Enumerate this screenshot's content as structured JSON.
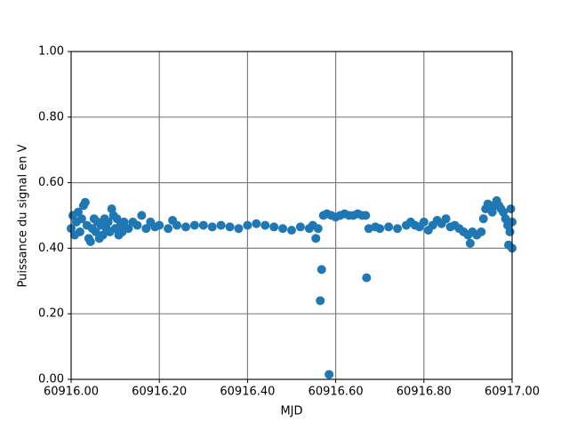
{
  "chart_data": {
    "type": "scatter",
    "x_label": "MJD",
    "y_label": "Puissance du signal en V",
    "xlim": [
      60916.0,
      60917.0
    ],
    "xticks": [
      {
        "value": 60916.0,
        "label": "60916.00"
      },
      {
        "value": 60916.2,
        "label": "60916.20"
      },
      {
        "value": 60916.4,
        "label": "60916.40"
      },
      {
        "value": 60916.6,
        "label": "60916.60"
      },
      {
        "value": 60916.8,
        "label": "60916.80"
      },
      {
        "value": 60917.0,
        "label": "60917.00"
      }
    ],
    "ylim": [
      0,
      1
    ],
    "yticks": [
      {
        "value": 0,
        "label": "0.00"
      },
      {
        "value": 0.2,
        "label": "0.20"
      },
      {
        "value": 0.4,
        "label": "0.40"
      },
      {
        "value": 0.6,
        "label": "0.60"
      },
      {
        "value": 0.8,
        "label": "0.80"
      },
      {
        "value": 1,
        "label": "1.00"
      }
    ],
    "grid": true,
    "color": "#1f77b4",
    "x": [
      60916.0,
      60916.004,
      60916.008,
      60916.012,
      60916.016,
      60916.02,
      60916.024,
      60916.028,
      60916.032,
      60916.036,
      60916.04,
      60916.044,
      60916.048,
      60916.052,
      60916.056,
      60916.06,
      60916.064,
      60916.068,
      60916.072,
      60916.076,
      60916.08,
      60916.084,
      60916.088,
      60916.092,
      60916.096,
      60916.1,
      60916.104,
      60916.108,
      60916.112,
      60916.116,
      60916.12,
      60916.13,
      60916.14,
      60916.15,
      60916.16,
      60916.17,
      60916.18,
      60916.19,
      60916.2,
      60916.22,
      60916.23,
      60916.24,
      60916.26,
      60916.28,
      60916.3,
      60916.32,
      60916.34,
      60916.36,
      60916.38,
      60916.4,
      60916.42,
      60916.44,
      60916.46,
      60916.48,
      60916.5,
      60916.52,
      60916.54,
      60916.548,
      60916.555,
      60916.56,
      60916.565,
      60916.568,
      60916.572,
      60916.58,
      60916.585,
      60916.59,
      60916.6,
      60916.61,
      60916.62,
      60916.63,
      60916.64,
      60916.65,
      60916.66,
      60916.668,
      60916.67,
      60916.675,
      60916.69,
      60916.7,
      60916.72,
      60916.74,
      60916.76,
      60916.77,
      60916.78,
      60916.79,
      60916.8,
      60916.81,
      60916.82,
      60916.83,
      60916.84,
      60916.85,
      60916.86,
      60916.87,
      60916.88,
      60916.89,
      60916.9,
      60916.905,
      60916.91,
      60916.92,
      60916.93,
      60916.935,
      60916.94,
      60916.945,
      60916.95,
      60916.955,
      60916.96,
      60916.965,
      60916.97,
      60916.975,
      60916.98,
      60916.985,
      60916.99,
      60916.992,
      60916.995,
      60916.997,
      60917.0,
      60917.0
    ],
    "values": [
      0.46,
      0.5,
      0.44,
      0.48,
      0.51,
      0.45,
      0.49,
      0.53,
      0.54,
      0.47,
      0.43,
      0.42,
      0.46,
      0.49,
      0.45,
      0.48,
      0.43,
      0.47,
      0.44,
      0.49,
      0.46,
      0.48,
      0.45,
      0.52,
      0.5,
      0.46,
      0.49,
      0.44,
      0.47,
      0.45,
      0.48,
      0.46,
      0.48,
      0.47,
      0.5,
      0.46,
      0.48,
      0.465,
      0.47,
      0.46,
      0.485,
      0.47,
      0.465,
      0.47,
      0.47,
      0.465,
      0.47,
      0.465,
      0.46,
      0.47,
      0.475,
      0.47,
      0.465,
      0.46,
      0.455,
      0.465,
      0.46,
      0.47,
      0.43,
      0.46,
      0.24,
      0.335,
      0.5,
      0.505,
      0.015,
      0.5,
      0.495,
      0.5,
      0.505,
      0.5,
      0.5,
      0.505,
      0.5,
      0.5,
      0.31,
      0.46,
      0.465,
      0.46,
      0.465,
      0.46,
      0.47,
      0.48,
      0.47,
      0.465,
      0.48,
      0.455,
      0.47,
      0.485,
      0.475,
      0.49,
      0.465,
      0.47,
      0.46,
      0.45,
      0.44,
      0.415,
      0.45,
      0.44,
      0.45,
      0.49,
      0.52,
      0.535,
      0.53,
      0.51,
      0.53,
      0.545,
      0.53,
      0.52,
      0.51,
      0.49,
      0.47,
      0.41,
      0.45,
      0.52,
      0.4,
      0.48
    ]
  }
}
